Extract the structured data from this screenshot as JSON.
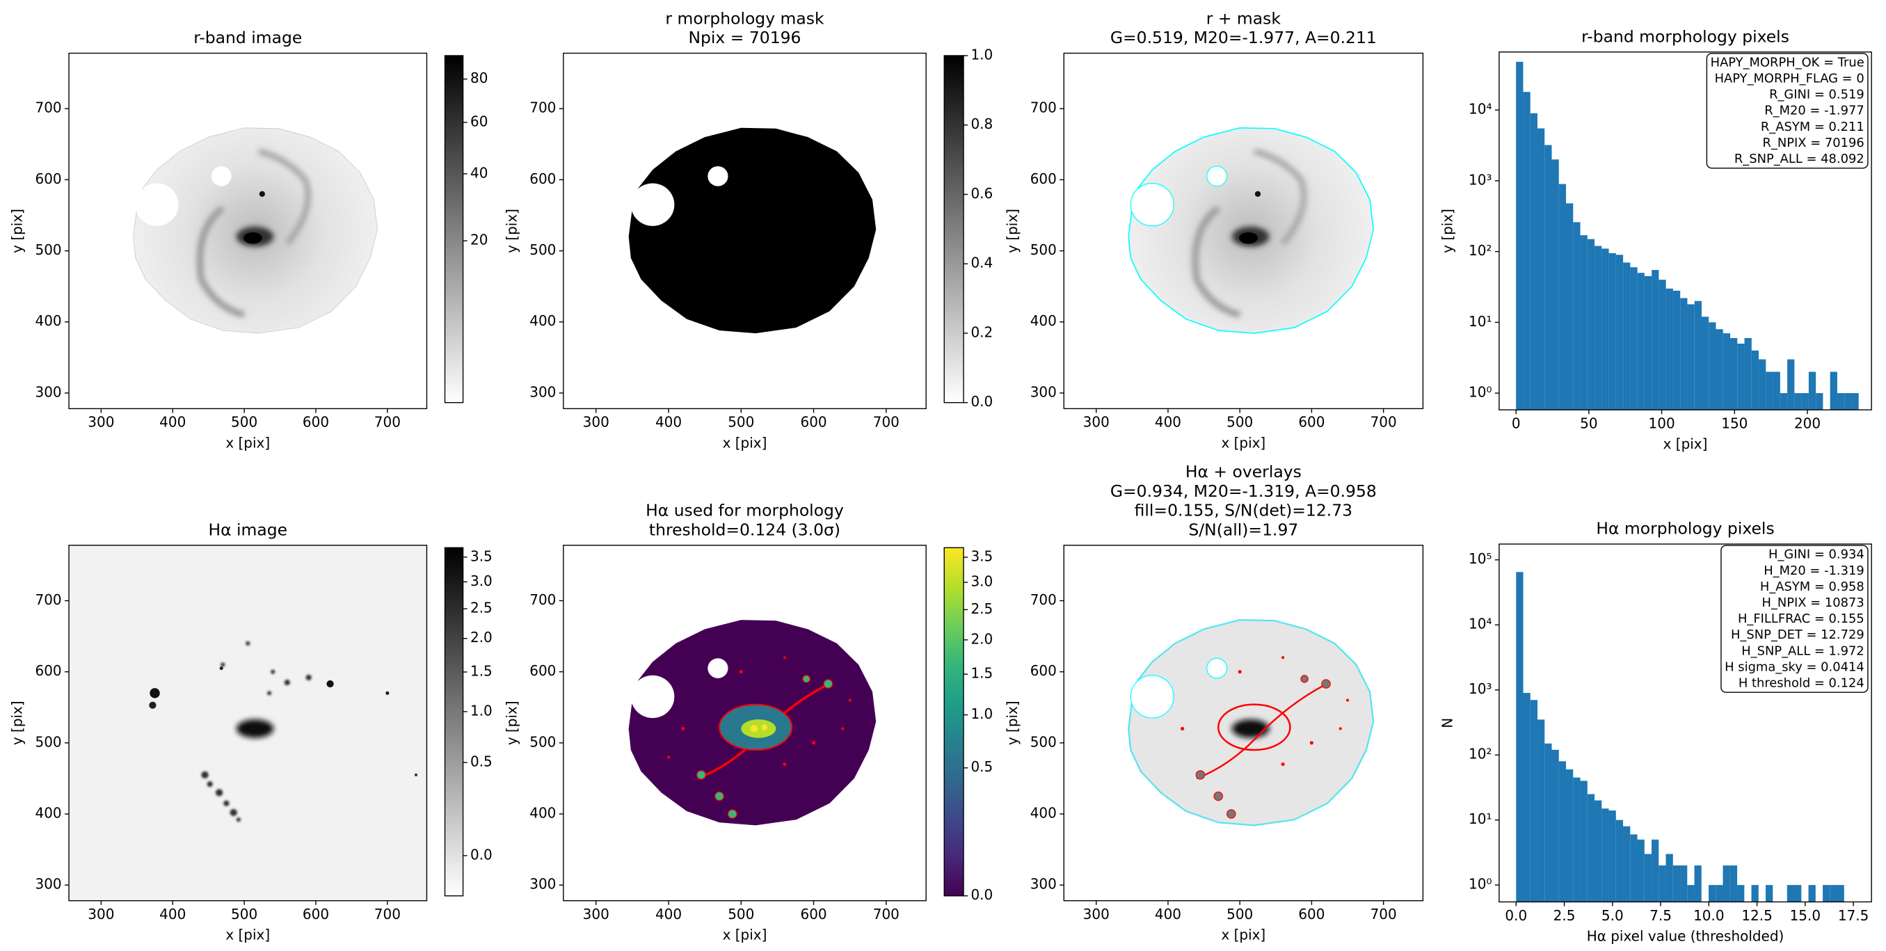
{
  "chart_data": [
    {
      "type": "image",
      "title": [
        "r-band image"
      ],
      "xlabel": "x [pix]",
      "ylabel": "y [pix]",
      "xlim": [
        255,
        755
      ],
      "ylim": [
        278,
        778
      ],
      "xticks": [
        300,
        400,
        500,
        600,
        700
      ],
      "yticks": [
        300,
        400,
        500,
        600,
        700
      ],
      "colorbar": {
        "lim": [
          0,
          92
        ],
        "scale": "sqrt",
        "cmap": "Greys",
        "ticks": [
          20,
          40,
          60,
          80
        ]
      }
    },
    {
      "type": "image",
      "title": [
        "r morphology mask",
        "Npix = 70196"
      ],
      "xlabel": "x [pix]",
      "ylabel": "y [pix]",
      "xlim": [
        255,
        755
      ],
      "ylim": [
        278,
        778
      ],
      "xticks": [
        300,
        400,
        500,
        600,
        700
      ],
      "yticks": [
        300,
        400,
        500,
        600,
        700
      ],
      "colorbar": {
        "lim": [
          0,
          1
        ],
        "scale": "linear",
        "cmap": "Greys",
        "ticks": [
          {
            "value": 0,
            "label": "0.0"
          },
          0.2,
          0.4,
          0.6,
          0.8,
          {
            "value": 1,
            "label": "1.0"
          }
        ]
      }
    },
    {
      "type": "image",
      "title": [
        "r + mask",
        "G=0.519, M20=-1.977, A=0.211"
      ],
      "xlabel": "x [pix]",
      "ylabel": "y [pix]",
      "xlim": [
        255,
        755
      ],
      "ylim": [
        278,
        778
      ],
      "xticks": [
        300,
        400,
        500,
        600,
        700
      ],
      "yticks": [
        300,
        400,
        500,
        600,
        700
      ]
    },
    {
      "type": "histogram",
      "title": [
        "r-band morphology pixels"
      ],
      "xlabel": "x [pix]",
      "ylabel": "y [pix]",
      "color": "#1f77b4",
      "xlim": [
        -11.6,
        244
      ],
      "ylim": [
        0.58,
        66000
      ],
      "yscale": "log",
      "xticks": [
        0,
        50,
        100,
        150,
        200
      ],
      "yticks": [
        {
          "value": 1,
          "label": "10⁰"
        },
        {
          "value": 10,
          "label": "10¹"
        },
        {
          "value": 100,
          "label": "10²"
        },
        {
          "value": 1000,
          "label": "10³"
        },
        {
          "value": 10000,
          "label": "10⁴"
        }
      ],
      "bins": [
        0,
        4.9,
        9.8,
        14.7,
        19.6,
        24.5,
        29.4,
        34.3,
        39.2,
        44.1,
        49,
        53.9,
        58.8,
        63.7,
        68.6,
        73.5,
        78.4,
        83.3,
        88.2,
        93.1,
        98,
        102.9,
        107.8,
        112.7,
        117.6,
        122.5,
        127.4,
        132.3,
        137.2,
        142.1,
        147,
        151.9,
        156.8,
        161.7,
        166.6,
        171.5,
        176.4,
        181.3,
        186.2,
        191.1,
        196,
        200.9,
        205.8,
        210.7,
        215.6,
        220.5,
        225.4,
        230.3,
        235.2
      ],
      "values": [
        48000,
        18000,
        9000,
        5500,
        3200,
        2000,
        900,
        480,
        260,
        170,
        150,
        120,
        110,
        95,
        90,
        70,
        60,
        50,
        45,
        55,
        40,
        30,
        28,
        22,
        18,
        20,
        12,
        10,
        8,
        7,
        6,
        5,
        6,
        4,
        3,
        2,
        2,
        1,
        3,
        1,
        1,
        2,
        1,
        0,
        2,
        1,
        1,
        1
      ],
      "stats": [
        "HAPY_MORPH_OK = True",
        "HAPY_MORPH_FLAG = 0",
        "R_GINI = 0.519",
        "R_M20 = -1.977",
        "R_ASYM = 0.211",
        "R_NPIX = 70196",
        "R_SNP_ALL = 48.092"
      ]
    },
    {
      "type": "image",
      "title": [
        "Hα image"
      ],
      "xlabel": "x [pix]",
      "ylabel": "y [pix]",
      "xlim": [
        255,
        755
      ],
      "ylim": [
        278,
        778
      ],
      "xticks": [
        300,
        400,
        500,
        600,
        700
      ],
      "yticks": [
        300,
        400,
        500,
        600,
        700
      ],
      "colorbar": {
        "lim": [
          -0.05,
          3.7
        ],
        "scale": "sqrt",
        "cmap": "Greys",
        "ticks": [
          {
            "value": 0,
            "label": "0.0"
          },
          0.5,
          {
            "value": 1,
            "label": "1.0"
          },
          1.5,
          {
            "value": 2,
            "label": "2.0"
          },
          2.5,
          {
            "value": 3,
            "label": "3.0"
          },
          3.5
        ]
      }
    },
    {
      "type": "image",
      "title": [
        "Hα used for morphology",
        "threshold=0.124 (3.0σ)"
      ],
      "xlabel": "x [pix]",
      "ylabel": "y [pix]",
      "xlim": [
        255,
        755
      ],
      "ylim": [
        278,
        778
      ],
      "xticks": [
        300,
        400,
        500,
        600,
        700
      ],
      "yticks": [
        300,
        400,
        500,
        600,
        700
      ],
      "colorbar": {
        "lim": [
          0,
          3.7
        ],
        "scale": "sqrt",
        "cmap": "viridis",
        "ticks": [
          {
            "value": 0,
            "label": "0.0"
          },
          0.5,
          {
            "value": 1,
            "label": "1.0"
          },
          1.5,
          {
            "value": 2,
            "label": "2.0"
          },
          2.5,
          {
            "value": 3,
            "label": "3.0"
          },
          3.5
        ]
      }
    },
    {
      "type": "image",
      "title": [
        "Hα + overlays",
        "G=0.934, M20=-1.319, A=0.958",
        "fill=0.155, S/N(det)=12.73",
        "S/N(all)=1.97"
      ],
      "xlabel": "x [pix]",
      "ylabel": "y [pix]",
      "xlim": [
        255,
        755
      ],
      "ylim": [
        278,
        778
      ],
      "xticks": [
        300,
        400,
        500,
        600,
        700
      ],
      "yticks": [
        300,
        400,
        500,
        600,
        700
      ]
    },
    {
      "type": "histogram",
      "title": [
        "Hα morphology pixels"
      ],
      "xlabel": "Hα pixel value (thresholded)",
      "ylabel": "N",
      "color": "#1f77b4",
      "xlim": [
        -0.88,
        18.44
      ],
      "ylim": [
        0.55,
        175000
      ],
      "yscale": "log",
      "xticks": [
        {
          "value": 0,
          "label": "0.0"
        },
        2.5,
        {
          "value": 5,
          "label": "5.0"
        },
        7.5,
        {
          "value": 10,
          "label": "10.0"
        },
        12.5,
        {
          "value": 15,
          "label": "15.0"
        },
        17.5
      ],
      "yticks": [
        {
          "value": 1,
          "label": "10⁰"
        },
        {
          "value": 10,
          "label": "10¹"
        },
        {
          "value": 100,
          "label": "10²"
        },
        {
          "value": 1000,
          "label": "10³"
        },
        {
          "value": 10000,
          "label": "10⁴"
        },
        {
          "value": 100000,
          "label": "10⁵"
        }
      ],
      "bins": [
        0,
        0.37,
        0.74,
        1.11,
        1.48,
        1.85,
        2.22,
        2.59,
        2.96,
        3.33,
        3.7,
        4.07,
        4.44,
        4.81,
        5.18,
        5.55,
        5.92,
        6.29,
        6.66,
        7.03,
        7.4,
        7.77,
        8.14,
        8.51,
        8.88,
        9.25,
        9.62,
        9.99,
        10.36,
        10.73,
        11.1,
        11.47,
        11.84,
        12.21,
        12.58,
        12.95,
        13.32,
        13.69,
        14.06,
        14.43,
        14.8,
        15.17,
        15.54,
        15.91,
        16.28,
        16.65,
        17.02
      ],
      "values": [
        65000,
        900,
        700,
        350,
        150,
        120,
        80,
        60,
        45,
        40,
        25,
        20,
        15,
        14,
        10,
        8,
        6,
        5,
        3,
        5,
        2,
        3,
        2,
        2,
        1,
        2,
        0,
        1,
        1,
        2,
        2,
        1,
        0,
        1,
        0,
        1,
        0,
        0,
        1,
        1,
        0,
        1,
        0,
        1,
        1,
        1
      ],
      "stats": [
        "H_GINI = 0.934",
        "H_M20 = -1.319",
        "H_ASYM = 0.958",
        "H_NPIX = 10873",
        "H_FILLFRAC = 0.155",
        "H_SNP_DET = 12.729",
        "H_SNP_ALL = 1.972",
        "H sigma_sky = 0.0414",
        "H threshold = 0.124"
      ]
    }
  ]
}
